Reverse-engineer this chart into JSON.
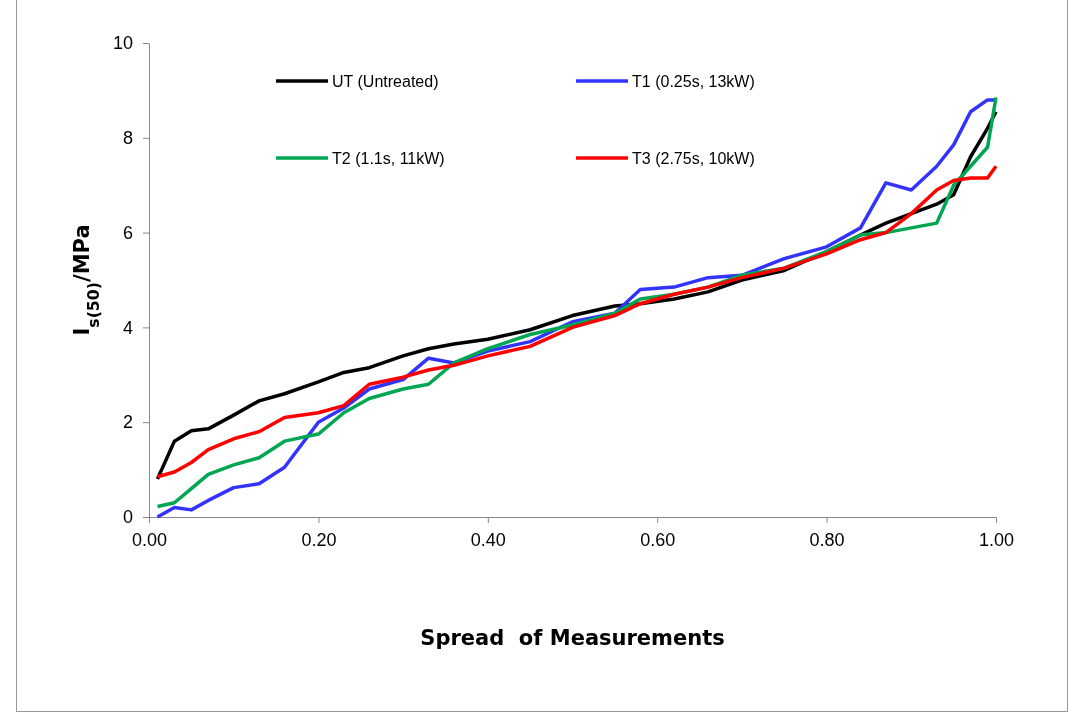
{
  "chart_data": {
    "type": "line",
    "xlabel": "Spread  of Measurements",
    "ylabel": "I$_{s(50)}$/MPa",
    "x": [
      0.01,
      0.03,
      0.05,
      0.07,
      0.1,
      0.13,
      0.16,
      0.2,
      0.23,
      0.26,
      0.3,
      0.33,
      0.36,
      0.4,
      0.45,
      0.5,
      0.55,
      0.58,
      0.62,
      0.66,
      0.7,
      0.75,
      0.8,
      0.84,
      0.87,
      0.9,
      0.93,
      0.95,
      0.97,
      0.99,
      1.0
    ],
    "series": [
      {
        "name": "UT (Untreated)",
        "color": "#000000",
        "values": [
          0.8,
          1.6,
          1.82,
          1.86,
          2.15,
          2.45,
          2.6,
          2.85,
          3.05,
          3.15,
          3.4,
          3.55,
          3.65,
          3.75,
          3.95,
          4.25,
          4.45,
          4.5,
          4.6,
          4.75,
          5.0,
          5.2,
          5.6,
          5.95,
          6.2,
          6.4,
          6.6,
          6.8,
          7.6,
          8.2,
          8.55
        ]
      },
      {
        "name": "T1 (0.25s, 13kW)",
        "color": "#3333ff",
        "values": [
          0,
          0.2,
          0.15,
          0.35,
          0.62,
          0.7,
          1.05,
          2.0,
          2.3,
          2.7,
          2.9,
          3.35,
          3.25,
          3.5,
          3.7,
          4.12,
          4.3,
          4.8,
          4.85,
          5.05,
          5.1,
          5.45,
          5.7,
          6.1,
          7.05,
          6.9,
          7.4,
          7.85,
          8.55,
          8.8,
          8.8
        ]
      },
      {
        "name": "T2 (1.1s, 11kW)",
        "color": "#00a651",
        "values": [
          0.22,
          0.3,
          0.6,
          0.9,
          1.1,
          1.25,
          1.6,
          1.75,
          2.2,
          2.5,
          2.7,
          2.8,
          3.25,
          3.55,
          3.85,
          4.05,
          4.3,
          4.6,
          4.7,
          4.85,
          5.1,
          5.25,
          5.6,
          5.95,
          6.0,
          6.1,
          6.2,
          7.0,
          7.4,
          7.8,
          8.85
        ]
      },
      {
        "name": "T3 (2.75s, 10kW)",
        "color": "#ff0000",
        "values": [
          0.85,
          0.95,
          1.15,
          1.42,
          1.65,
          1.8,
          2.1,
          2.2,
          2.35,
          2.8,
          2.95,
          3.1,
          3.2,
          3.4,
          3.6,
          4.0,
          4.25,
          4.5,
          4.7,
          4.85,
          5.05,
          5.25,
          5.55,
          5.85,
          6.0,
          6.4,
          6.9,
          7.1,
          7.15,
          7.15,
          7.4
        ]
      }
    ],
    "xlim": [
      0,
      1
    ],
    "xticks": [
      {
        "value": 0,
        "label": "0.00"
      },
      {
        "value": 0.2,
        "label": "0.20"
      },
      {
        "value": 0.4,
        "label": "0.40"
      },
      {
        "value": 0.6,
        "label": "0.60"
      },
      {
        "value": 0.8,
        "label": "0.80"
      },
      {
        "value": 1,
        "label": "1.00"
      }
    ],
    "ylim": [
      0,
      10
    ],
    "yticks": [
      0,
      2,
      4,
      6,
      8,
      10
    ],
    "grid": false,
    "legend": "top",
    "marker": "none",
    "line_style": "solid"
  }
}
